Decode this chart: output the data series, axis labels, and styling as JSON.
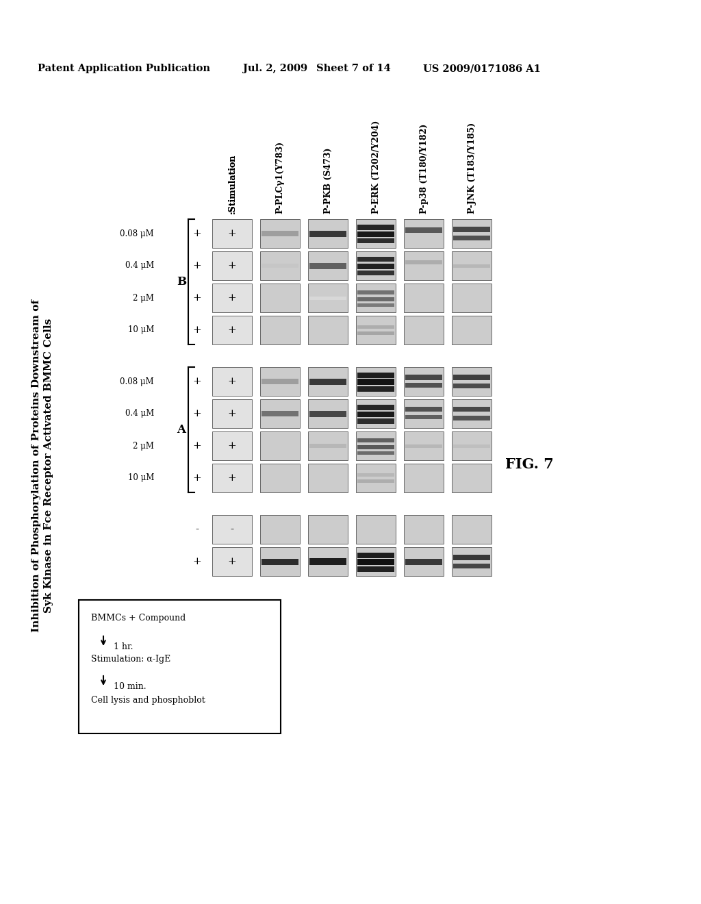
{
  "title_line1": "Inhibition of Phosphorylation of Proteins Downstream of",
  "title_line2": "Syk Kinase in Fce Receptor Activated BMMC Cells",
  "header_text": "Patent Application Publication",
  "header_date": "Jul. 2, 2009",
  "header_sheet": "Sheet 7 of 14",
  "header_patent": "US 2009/0171086 A1",
  "fig_label": "FIG. 7",
  "col_labels": [
    ":Stimulation",
    "P-PLCγ1(Y783)",
    "P-PKB (S473)",
    "P-ERK (T202/Y204)",
    "P-p38 (T180/Y182)",
    "P-JNK (T183/Y185)"
  ],
  "group_A_label": "A",
  "group_B_label": "B",
  "group_rows": [
    "0.08 μM",
    "0.4 μM",
    "2 μM",
    "10 μM"
  ],
  "control_rows": [
    "-",
    "+"
  ],
  "protocol_text": [
    "BMMCs + Compound",
    "1 hr.",
    "Stimulation: α-IgE",
    "10 min.",
    "Cell lysis and phosphoblot"
  ],
  "background_color": "#ffffff",
  "gel_bg": "#cccccc",
  "band_color": "#1a1a1a",
  "plus_sign": "+",
  "minus_sign": "-",
  "bands_data": {
    "0": [
      [],
      [],
      [],
      [],
      [],
      [],
      [],
      [],
      [],
      []
    ],
    "1": [
      [],
      [
        [
          0.5,
          0.82,
          9
        ]
      ],
      [
        [
          0.5,
          0.38,
          8
        ]
      ],
      [
        [
          0.5,
          0.22,
          6
        ]
      ],
      [],
      [],
      [
        [
          0.5,
          0.38,
          8
        ]
      ],
      [
        [
          0.5,
          0.55,
          8
        ]
      ],
      [],
      []
    ],
    "2": [
      [],
      [
        [
          0.5,
          0.88,
          10
        ]
      ],
      [
        [
          0.5,
          0.78,
          9
        ]
      ],
      [
        [
          0.5,
          0.62,
          9
        ]
      ],
      [
        [
          0.5,
          0.15,
          5
        ]
      ],
      [],
      [
        [
          0.5,
          0.78,
          9
        ]
      ],
      [
        [
          0.5,
          0.72,
          9
        ]
      ],
      [
        [
          0.5,
          0.28,
          6
        ]
      ],
      []
    ],
    "3": [
      [],
      [
        [
          0.28,
          0.88,
          8
        ],
        [
          0.52,
          0.93,
          9
        ],
        [
          0.76,
          0.87,
          8
        ]
      ],
      [
        [
          0.28,
          0.85,
          8
        ],
        [
          0.52,
          0.9,
          8
        ],
        [
          0.76,
          0.82,
          7
        ]
      ],
      [
        [
          0.28,
          0.82,
          7
        ],
        [
          0.52,
          0.87,
          8
        ],
        [
          0.76,
          0.8,
          7
        ]
      ],
      [
        [
          0.3,
          0.55,
          6
        ],
        [
          0.55,
          0.58,
          6
        ],
        [
          0.75,
          0.52,
          5
        ]
      ],
      [
        [
          0.4,
          0.32,
          5
        ],
        [
          0.6,
          0.35,
          5
        ]
      ],
      [
        [
          0.28,
          0.88,
          8
        ],
        [
          0.52,
          0.92,
          9
        ],
        [
          0.76,
          0.86,
          8
        ]
      ],
      [
        [
          0.28,
          0.85,
          8
        ],
        [
          0.52,
          0.9,
          8
        ],
        [
          0.76,
          0.82,
          8
        ]
      ],
      [
        [
          0.3,
          0.62,
          6
        ],
        [
          0.55,
          0.65,
          6
        ],
        [
          0.75,
          0.58,
          5
        ]
      ],
      [
        [
          0.4,
          0.28,
          5
        ],
        [
          0.6,
          0.32,
          5
        ]
      ]
    ],
    "4": [
      [],
      [
        [
          0.5,
          0.78,
          9
        ]
      ],
      [
        [
          0.38,
          0.65,
          8
        ]
      ],
      [
        [
          0.38,
          0.32,
          6
        ]
      ],
      [],
      [],
      [
        [
          0.35,
          0.72,
          8
        ],
        [
          0.62,
          0.68,
          7
        ]
      ],
      [
        [
          0.35,
          0.68,
          7
        ],
        [
          0.62,
          0.62,
          6
        ]
      ],
      [
        [
          0.5,
          0.28,
          5
        ]
      ],
      []
    ],
    "5": [
      [],
      [
        [
          0.35,
          0.78,
          8
        ],
        [
          0.65,
          0.72,
          7
        ]
      ],
      [
        [
          0.35,
          0.72,
          8
        ],
        [
          0.65,
          0.68,
          7
        ]
      ],
      [
        [
          0.5,
          0.28,
          5
        ]
      ],
      [],
      [],
      [
        [
          0.35,
          0.75,
          8
        ],
        [
          0.65,
          0.7,
          7
        ]
      ],
      [
        [
          0.35,
          0.72,
          7
        ],
        [
          0.65,
          0.67,
          7
        ]
      ],
      [
        [
          0.5,
          0.25,
          5
        ]
      ],
      []
    ]
  }
}
